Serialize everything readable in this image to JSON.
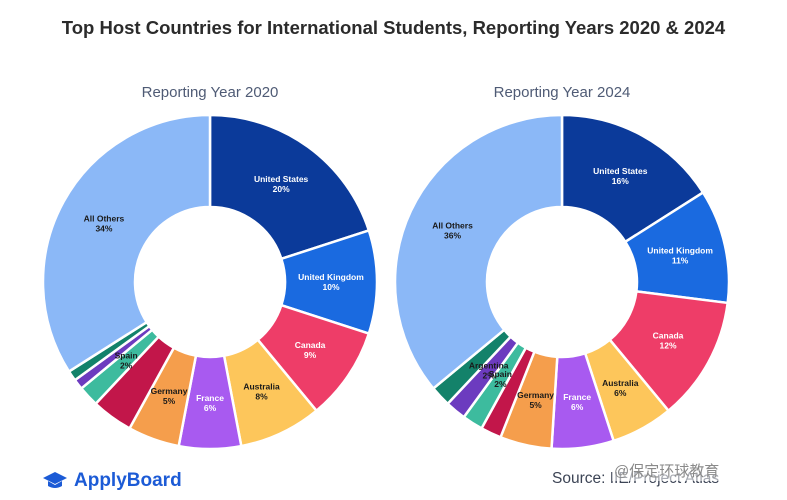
{
  "header": {
    "title": "Top Host Countries for International Students, Reporting Years 2020 & 2024"
  },
  "footer": {
    "brand": "ApplyBoard",
    "source": "Source: IIE/Project Atlas",
    "watermark": "@保定环球教育"
  },
  "chart_data": [
    {
      "type": "pie",
      "style": "donut",
      "title": "Reporting Year 2020",
      "slices": [
        {
          "label": "United States",
          "value": 20,
          "display": "20%",
          "color": "#0b3a9a"
        },
        {
          "label": "United Kingdom",
          "value": 10,
          "display": "10%",
          "color": "#1a6ae0"
        },
        {
          "label": "Canada",
          "value": 9,
          "display": "9%",
          "color": "#ee3d68"
        },
        {
          "label": "Australia",
          "value": 8,
          "display": "8%",
          "color": "#fdc65b"
        },
        {
          "label": "France",
          "value": 6,
          "display": "6%",
          "color": "#a85af0"
        },
        {
          "label": "Germany",
          "value": 5,
          "display": "5%",
          "color": "#f59e4c"
        },
        {
          "label": "",
          "value": 4,
          "display": "",
          "color": "#c2164a"
        },
        {
          "label": "Spain",
          "value": 2,
          "display": "2%",
          "color": "#3dbb9e"
        },
        {
          "label": "",
          "value": 1,
          "display": "",
          "color": "#6c3bbf"
        },
        {
          "label": "",
          "value": 1,
          "display": "",
          "color": "#13826a"
        },
        {
          "label": "All Others",
          "value": 34,
          "display": "34%",
          "color": "#8bb8f7"
        }
      ]
    },
    {
      "type": "pie",
      "style": "donut",
      "title": "Reporting Year 2024",
      "slices": [
        {
          "label": "United States",
          "value": 16,
          "display": "16%",
          "color": "#0b3a9a"
        },
        {
          "label": "United Kingdom",
          "value": 11,
          "display": "11%",
          "color": "#1a6ae0"
        },
        {
          "label": "Canada",
          "value": 12,
          "display": "12%",
          "color": "#ee3d68"
        },
        {
          "label": "Australia",
          "value": 6,
          "display": "6%",
          "color": "#fdc65b"
        },
        {
          "label": "France",
          "value": 6,
          "display": "6%",
          "color": "#a85af0"
        },
        {
          "label": "Germany",
          "value": 5,
          "display": "5%",
          "color": "#f59e4c"
        },
        {
          "label": "",
          "value": 2,
          "display": "",
          "color": "#c2164a"
        },
        {
          "label": "Spain",
          "value": 2,
          "display": "2%",
          "color": "#3dbb9e"
        },
        {
          "label": "Argentina",
          "value": 2,
          "display": "2%",
          "color": "#6c3bbf"
        },
        {
          "label": "",
          "value": 2,
          "display": "",
          "color": "#13826a"
        },
        {
          "label": "All Others",
          "value": 36,
          "display": "36%",
          "color": "#8bb8f7"
        }
      ]
    }
  ]
}
